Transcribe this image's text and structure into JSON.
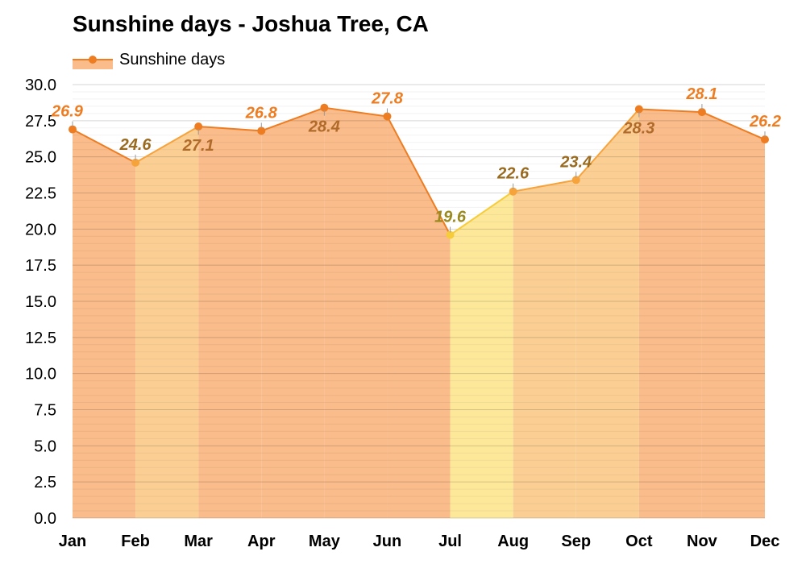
{
  "title": "Sunshine days - Joshua Tree, CA",
  "legend": {
    "label": "Sunshine days",
    "color": "#ee7d22"
  },
  "chart_data": {
    "type": "area",
    "title": "Sunshine days - Joshua Tree, CA",
    "xlabel": "",
    "ylabel": "",
    "ylim": [
      0,
      30
    ],
    "yticks": [
      "0.0",
      "2.5",
      "5.0",
      "7.5",
      "10.0",
      "12.5",
      "15.0",
      "17.5",
      "20.0",
      "22.5",
      "25.0",
      "27.5",
      "30.0"
    ],
    "grid": true,
    "legend_position": "top-left",
    "categories": [
      "Jan",
      "Feb",
      "Mar",
      "Apr",
      "May",
      "Jun",
      "Jul",
      "Aug",
      "Sep",
      "Oct",
      "Nov",
      "Dec"
    ],
    "series": [
      {
        "name": "Sunshine days",
        "values": [
          26.9,
          24.6,
          27.1,
          26.8,
          28.4,
          27.8,
          19.6,
          22.6,
          23.4,
          28.3,
          28.1,
          26.2
        ],
        "labels": [
          "26.9",
          "24.6",
          "27.1",
          "26.8",
          "28.4",
          "27.8",
          "19.6",
          "22.6",
          "23.4",
          "28.3",
          "28.1",
          "26.2"
        ]
      }
    ],
    "colors": {
      "high": {
        "line": "#ee7d22",
        "fill": "#f9bc8a",
        "label": "#ee7d22",
        "label_inner": "#b06a2a"
      },
      "mid": {
        "line": "#f7a33c",
        "fill": "#fbcf94",
        "label": "#9a6a1e"
      },
      "low": {
        "line": "#f7cc3a",
        "fill": "#fde89a",
        "label": "#9a8a20"
      }
    }
  }
}
